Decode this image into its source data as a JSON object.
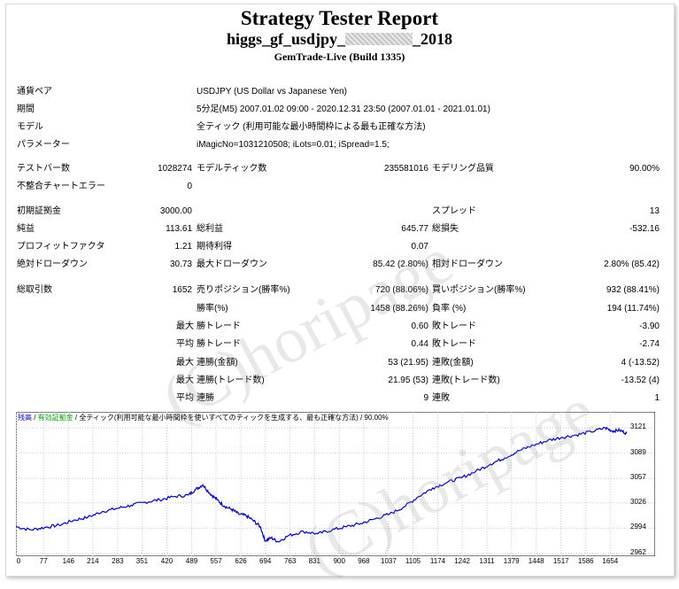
{
  "header": {
    "title": "Strategy Tester Report",
    "subtitle_left": "higgs_gf_usdjpy_",
    "subtitle_right": "_2018",
    "server": "GemTrade-Live (Build 1335)"
  },
  "info": [
    {
      "label": "通貨ペア",
      "value": "USDJPY (US Dollar vs Japanese Yen)"
    },
    {
      "label": "期間",
      "value": "5分足(M5) 2007.01.02 09:00 - 2020.12.31 23:50 (2007.01.01 - 2021.01.01)"
    },
    {
      "label": "モデル",
      "value": "全ティック (利用可能な最小時間枠による最も正確な方法)"
    },
    {
      "label": "パラメーター",
      "value": "iMagicNo=1031210508; iLots=0.01; iSpread=1.5;"
    }
  ],
  "stats": {
    "bars_label": "テストバー数",
    "bars_value": "1028274",
    "ticks_label": "モデルティック数",
    "ticks_value": "235581016",
    "quality_label": "モデリング品質",
    "quality_value": "90.00%",
    "mismatch_label": "不整合チャートエラー",
    "mismatch_value": "0",
    "deposit_label": "初期証拠金",
    "deposit_value": "3000.00",
    "spread_label": "スプレッド",
    "spread_value": "13",
    "net_label": "純益",
    "net_value": "113.61",
    "gross_profit_label": "総利益",
    "gross_profit_value": "645.77",
    "gross_loss_label": "総損失",
    "gross_loss_value": "-532.16",
    "pf_label": "プロフィットファクタ",
    "pf_value": "1.21",
    "expected_label": "期待利得",
    "expected_value": "0.07",
    "abs_dd_label": "絶対ドローダウン",
    "abs_dd_value": "30.73",
    "max_dd_label": "最大ドローダウン",
    "max_dd_value": "85.42 (2.80%)",
    "rel_dd_label": "相対ドローダウン",
    "rel_dd_value": "2.80% (85.42)",
    "total_trades_label": "総取引数",
    "total_trades_value": "1652",
    "short_label": "売りポジション(勝率%)",
    "short_value": "720 (88.06%)",
    "long_label": "買いポジション(勝率%)",
    "long_value": "932 (88.41%)",
    "win_rate_label": "勝率(%)",
    "win_rate_value": "1458 (88.26%)",
    "loss_rate_label": "負率 (%)",
    "loss_rate_value": "194 (11.74%)",
    "largest_win_label": "勝トレード",
    "largest_win_value": "0.60",
    "largest_loss_label": "敗トレード",
    "largest_loss_value": "-3.90",
    "avg_win_label": "勝トレード",
    "avg_win_value": "0.44",
    "avg_loss_label": "敗トレード",
    "avg_loss_value": "-2.74",
    "max_consec_win_amt_label": "連勝(金額)",
    "max_consec_win_amt_value": "53 (21.95)",
    "max_consec_loss_amt_label": "連敗(金額)",
    "max_consec_loss_amt_value": "4 (-13.52)",
    "max_consec_win_cnt_label": "連勝(トレード数)",
    "max_consec_win_cnt_value": "21.95 (53)",
    "max_consec_loss_cnt_label": "連敗(トレード数)",
    "max_consec_loss_cnt_value": "-13.52 (4)",
    "avg_consec_win_label": "連勝",
    "avg_consec_win_value": "9",
    "avg_consec_loss_label": "連敗",
    "avg_consec_loss_value": "1",
    "prefix_max": "最大",
    "prefix_avg": "平均"
  },
  "watermark": {
    "text": "(C)horipage"
  },
  "chart_head": {
    "balance": "残高",
    "sep1": " / ",
    "margin": "有効証拠金",
    "sep2": " / ",
    "model": "全ティック(利用可能な最小時間枠を使いすべてのティックを生成する、最も正確な方法)",
    "sep3": " / ",
    "quality": "90.00%"
  },
  "chart_data": {
    "type": "line",
    "x_ticks": [
      0,
      77,
      146,
      214,
      283,
      351,
      420,
      489,
      557,
      626,
      694,
      763,
      831,
      900,
      968,
      1037,
      1105,
      1174,
      1242,
      1311,
      1379,
      1448,
      1517,
      1586,
      1654
    ],
    "y_ticks": [
      3121,
      3089,
      3057,
      3026,
      2994,
      2962
    ],
    "ylim": [
      2962,
      3130
    ],
    "xlim": [
      0,
      1700
    ],
    "series": [
      {
        "color": "#0000c0",
        "x": [
          0,
          40,
          80,
          120,
          160,
          200,
          240,
          280,
          320,
          360,
          400,
          440,
          480,
          500,
          520,
          540,
          560,
          580,
          600,
          620,
          640,
          660,
          680,
          694,
          710,
          730,
          760,
          800,
          840,
          880,
          920,
          960,
          1000,
          1040,
          1080,
          1120,
          1160,
          1200,
          1240,
          1280,
          1320,
          1360,
          1400,
          1440,
          1480,
          1520,
          1560,
          1600,
          1640,
          1660,
          1680,
          1700
        ],
        "y": [
          2996,
          2992,
          2995,
          2998,
          3004,
          3008,
          3015,
          3019,
          3023,
          3027,
          3030,
          3034,
          3036,
          3043,
          3049,
          3038,
          3030,
          3022,
          3018,
          3012,
          3010,
          3004,
          2996,
          2978,
          2982,
          2977,
          2985,
          2990,
          2987,
          2992,
          2996,
          3000,
          3006,
          3012,
          3021,
          3034,
          3045,
          3052,
          3058,
          3066,
          3075,
          3083,
          3092,
          3099,
          3105,
          3109,
          3112,
          3116,
          3121,
          3117,
          3118,
          3114
        ]
      }
    ]
  }
}
